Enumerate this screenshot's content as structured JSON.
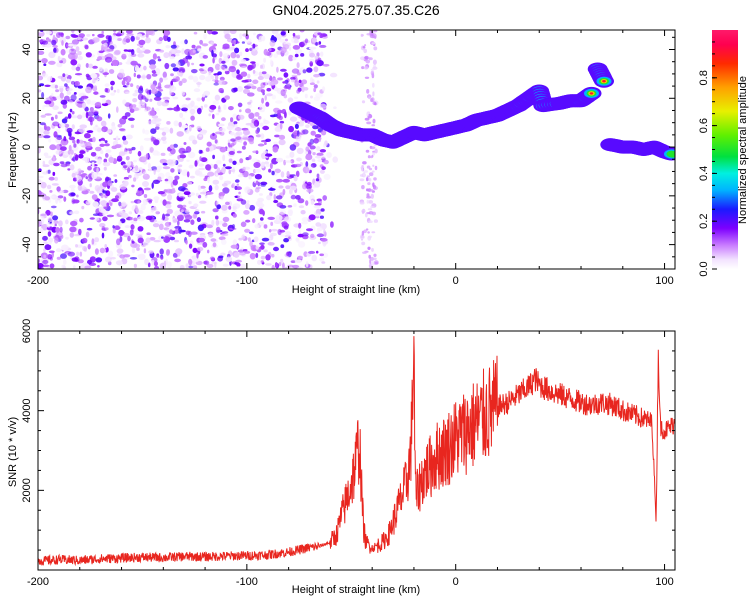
{
  "title": "GN04.2025.275.07.35.C26",
  "chart_data": [
    {
      "type": "heatmap",
      "xlabel": "Height of straight line (km)",
      "ylabel": "Frequency (Hz)",
      "xlim": [
        -200,
        105
      ],
      "ylim": [
        -50,
        48
      ],
      "x_ticks": [
        -200,
        -100,
        0,
        100
      ],
      "y_ticks": [
        -40,
        -20,
        0,
        20,
        40
      ],
      "colorbar": {
        "label": "Normalized spectral amplitude",
        "range": [
          0,
          1
        ],
        "ticks": [
          0.0,
          0.2,
          0.4,
          0.6,
          0.8
        ]
      },
      "noise_region_x": [
        -200,
        -62
      ],
      "noise_strip_x": [
        -45,
        -38
      ],
      "ridge": [
        {
          "x": -75,
          "f": 16
        },
        {
          "x": -70,
          "f": 14
        },
        {
          "x": -65,
          "f": 12
        },
        {
          "x": -60,
          "f": 9
        },
        {
          "x": -55,
          "f": 7
        },
        {
          "x": -50,
          "f": 6
        },
        {
          "x": -45,
          "f": 5
        },
        {
          "x": -40,
          "f": 5
        },
        {
          "x": -35,
          "f": 3
        },
        {
          "x": -30,
          "f": 2
        },
        {
          "x": -25,
          "f": 4
        },
        {
          "x": -20,
          "f": 6
        },
        {
          "x": -15,
          "f": 5
        },
        {
          "x": -10,
          "f": 6
        },
        {
          "x": -5,
          "f": 7
        },
        {
          "x": 0,
          "f": 8
        },
        {
          "x": 5,
          "f": 9
        },
        {
          "x": 10,
          "f": 11
        },
        {
          "x": 15,
          "f": 12
        },
        {
          "x": 20,
          "f": 13
        },
        {
          "x": 25,
          "f": 15
        },
        {
          "x": 30,
          "f": 17
        },
        {
          "x": 35,
          "f": 20
        },
        {
          "x": 40,
          "f": 23
        },
        {
          "x": 42,
          "f": 17
        },
        {
          "x": 50,
          "f": 18
        },
        {
          "x": 55,
          "f": 19
        },
        {
          "x": 60,
          "f": 19
        },
        {
          "x": 65,
          "f": 22
        },
        {
          "x": 68,
          "f": 32
        },
        {
          "x": 71,
          "f": 27
        },
        {
          "x": 74,
          "f": 1
        },
        {
          "x": 80,
          "f": 0
        },
        {
          "x": 85,
          "f": 0
        },
        {
          "x": 90,
          "f": -1
        },
        {
          "x": 95,
          "f": 0
        },
        {
          "x": 100,
          "f": -2
        },
        {
          "x": 104,
          "f": -3
        }
      ]
    },
    {
      "type": "line",
      "xlabel": "Height of straight line (km)",
      "ylabel": "SNR (10 * v/v)",
      "xlim": [
        -200,
        105
      ],
      "ylim": [
        0,
        6000
      ],
      "x_ticks": [
        -200,
        -100,
        0,
        100
      ],
      "y_ticks": [
        2000,
        4000,
        6000
      ],
      "series": [
        {
          "name": "SNR",
          "color": "#e8261f",
          "x": [
            -200,
            -190,
            -180,
            -170,
            -160,
            -150,
            -140,
            -130,
            -120,
            -110,
            -100,
            -90,
            -80,
            -70,
            -65,
            -60,
            -57,
            -55,
            -52,
            -50,
            -48,
            -47,
            -46,
            -45,
            -44,
            -43,
            -42,
            -41,
            -40,
            -38,
            -35,
            -32,
            -30,
            -28,
            -26,
            -24,
            -22,
            -21,
            -20,
            -19.5,
            -19,
            -18,
            -16,
            -14,
            -12,
            -10,
            -8,
            -5,
            0,
            5,
            10,
            15,
            20,
            25,
            30,
            35,
            38,
            40,
            45,
            50,
            55,
            60,
            65,
            70,
            75,
            80,
            85,
            90,
            94,
            96,
            97,
            98,
            100,
            103,
            105
          ],
          "values": [
            220,
            260,
            240,
            280,
            300,
            320,
            310,
            340,
            330,
            350,
            360,
            380,
            450,
            560,
            600,
            700,
            900,
            1300,
            1800,
            2200,
            2600,
            3000,
            3200,
            1900,
            1000,
            700,
            650,
            600,
            550,
            600,
            700,
            900,
            1200,
            1500,
            1800,
            2100,
            2700,
            3500,
            6000,
            2500,
            1800,
            2000,
            2300,
            2500,
            2600,
            2800,
            2900,
            3000,
            3300,
            3500,
            3700,
            3900,
            4100,
            4200,
            4400,
            4600,
            4800,
            4650,
            4500,
            4400,
            4300,
            4200,
            4150,
            4200,
            4150,
            4000,
            3900,
            3800,
            3700,
            1200,
            5500,
            3600,
            3500,
            3600,
            3700
          ]
        }
      ]
    }
  ]
}
